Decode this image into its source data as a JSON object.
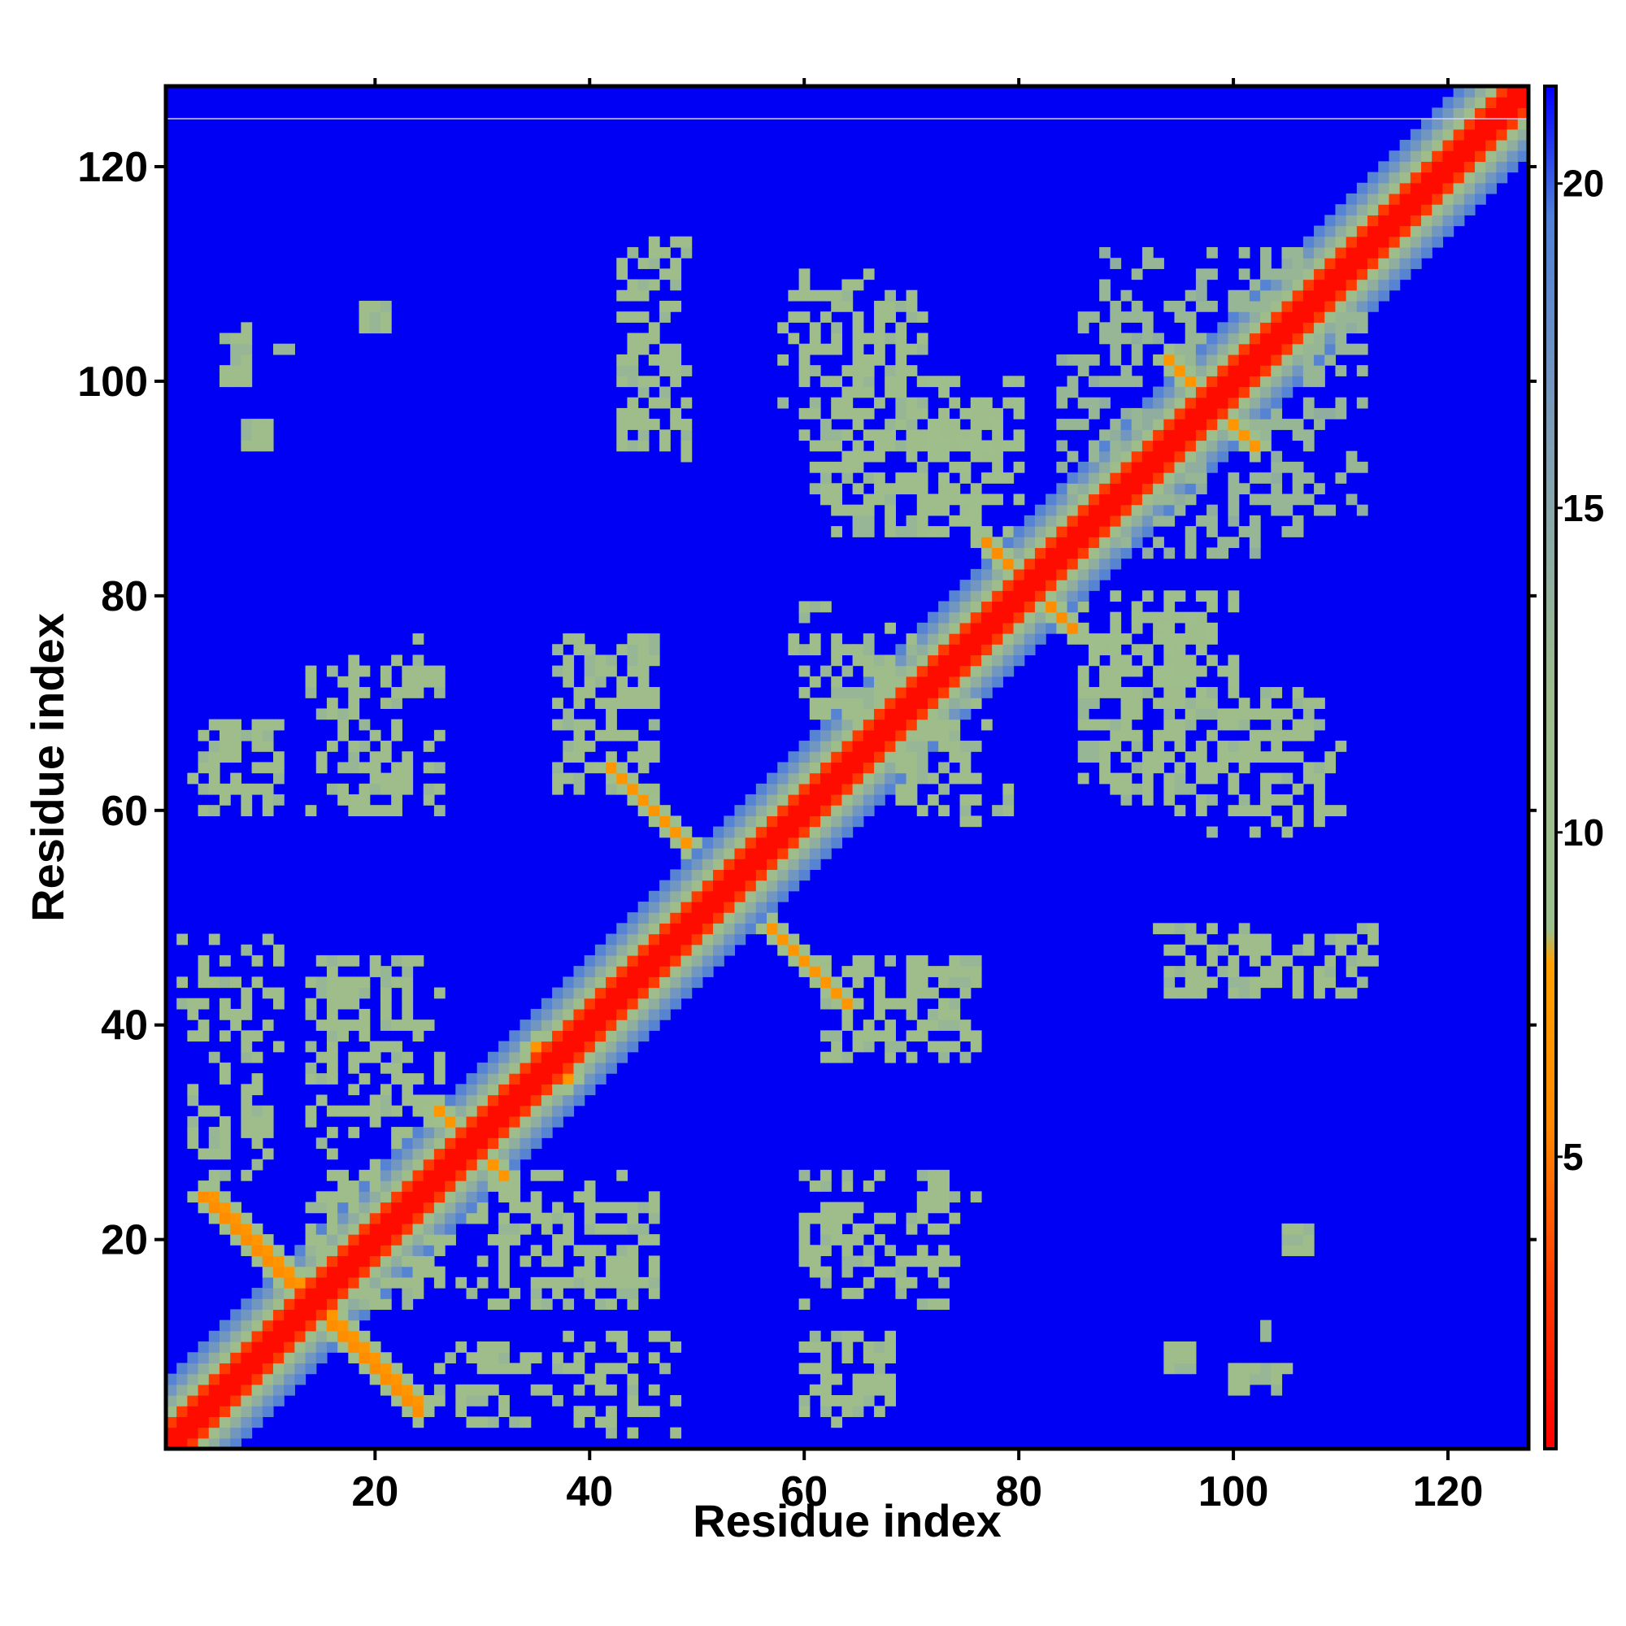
{
  "chart_data": {
    "type": "heatmap",
    "title": "",
    "xlabel": "Residue index",
    "ylabel": "Residue index",
    "xlim": [
      1,
      127
    ],
    "ylim": [
      1,
      127
    ],
    "x_ticks": [
      20,
      40,
      60,
      80,
      100,
      120
    ],
    "y_ticks": [
      20,
      40,
      60,
      80,
      100,
      120
    ],
    "grid": false,
    "legend": "colorbar-right",
    "colorbar": {
      "range": [
        0.5,
        21.5
      ],
      "ticks": [
        5,
        10,
        15,
        20
      ],
      "stops": [
        {
          "value": 0.5,
          "color": "#ff0000"
        },
        {
          "value": 3.0,
          "color": "#ff3a00"
        },
        {
          "value": 5.5,
          "color": "#ff8800"
        },
        {
          "value": 8.0,
          "color": "#ffa000"
        },
        {
          "value": 8.5,
          "color": "#9cc08c"
        },
        {
          "value": 12.0,
          "color": "#9fbd8b"
        },
        {
          "value": 16.0,
          "color": "#7f9fb5"
        },
        {
          "value": 19.5,
          "color": "#4f7fd8"
        },
        {
          "value": 21.5,
          "color": "#0000ff"
        }
      ]
    },
    "background_value": 22,
    "background_color": "#0000f5",
    "diagonal_band": [
      {
        "offset_max": 1,
        "value": 1
      },
      {
        "offset_max": 2,
        "value": 3
      },
      {
        "offset_max": 3,
        "value": 12
      },
      {
        "offset_max": 4,
        "value": 14
      },
      {
        "offset_max": 5,
        "value": 17
      },
      {
        "offset_max": 6,
        "value": 19
      }
    ],
    "contact_segments": [
      {
        "from": [
          4,
          24
        ],
        "to": [
          12,
          16
        ],
        "value": 6
      },
      {
        "from": [
          5,
          24
        ],
        "to": [
          13,
          16
        ],
        "value": 7
      },
      {
        "from": [
          16,
          12
        ],
        "to": [
          24,
          4
        ],
        "value": 6
      },
      {
        "from": [
          17,
          12
        ],
        "to": [
          24,
          5
        ],
        "value": 7
      },
      {
        "from": [
          26,
          32
        ],
        "to": [
          32,
          26
        ],
        "value": 7
      },
      {
        "from": [
          35,
          38
        ],
        "to": [
          38,
          35
        ],
        "value": 7
      },
      {
        "from": [
          42,
          64
        ],
        "to": [
          49,
          57
        ],
        "value": 7
      },
      {
        "from": [
          57,
          49
        ],
        "to": [
          64,
          42
        ],
        "value": 7
      },
      {
        "from": [
          77,
          85
        ],
        "to": [
          85,
          77
        ],
        "value": 6
      },
      {
        "from": [
          94,
          102
        ],
        "to": [
          102,
          94
        ],
        "value": 7
      },
      {
        "from": [
          96,
          98
        ],
        "to": [
          98,
          96
        ],
        "value": 6
      }
    ],
    "contact_regions": [
      {
        "x": [
          3,
          10
        ],
        "y": [
          28,
          46
        ],
        "density": 0.35,
        "value": 12
      },
      {
        "x": [
          3,
          10
        ],
        "y": [
          60,
          68
        ],
        "density": 0.35,
        "value": 12
      },
      {
        "x": [
          8,
          12
        ],
        "y": [
          101,
          104
        ],
        "density": 0.15,
        "value": 13
      },
      {
        "x": [
          14,
          24
        ],
        "y": [
          14,
          46
        ],
        "density": 0.3,
        "value": 12
      },
      {
        "x": [
          14,
          26
        ],
        "y": [
          60,
          73
        ],
        "density": 0.35,
        "value": 12
      },
      {
        "x": [
          20,
          21
        ],
        "y": [
          106,
          107
        ],
        "density": 1.0,
        "value": 13
      },
      {
        "x": [
          26,
          35
        ],
        "y": [
          3,
          9
        ],
        "density": 0.3,
        "value": 12
      },
      {
        "x": [
          30,
          46
        ],
        "y": [
          14,
          26
        ],
        "density": 0.35,
        "value": 12
      },
      {
        "x": [
          38,
          48
        ],
        "y": [
          2,
          11
        ],
        "density": 0.3,
        "value": 12
      },
      {
        "x": [
          38,
          46
        ],
        "y": [
          64,
          76
        ],
        "density": 0.4,
        "value": 12
      },
      {
        "x": [
          43,
          49
        ],
        "y": [
          93,
          113
        ],
        "density": 0.35,
        "value": 12
      },
      {
        "x": [
          60,
          68
        ],
        "y": [
          4,
          11
        ],
        "density": 0.35,
        "value": 12
      },
      {
        "x": [
          60,
          67
        ],
        "y": [
          17,
          25
        ],
        "density": 0.4,
        "value": 12
      },
      {
        "x": [
          70,
          76
        ],
        "y": [
          18,
          25
        ],
        "density": 0.3,
        "value": 12
      },
      {
        "x": [
          62,
          76
        ],
        "y": [
          37,
          46
        ],
        "density": 0.3,
        "value": 12
      },
      {
        "x": [
          61,
          70
        ],
        "y": [
          69,
          76
        ],
        "density": 0.35,
        "value": 12
      },
      {
        "x": [
          60,
          71
        ],
        "y": [
          89,
          107
        ],
        "density": 0.35,
        "value": 12
      },
      {
        "x": [
          72,
          78
        ],
        "y": [
          88,
          97
        ],
        "density": 0.45,
        "value": 12
      },
      {
        "x": [
          70,
          79
        ],
        "y": [
          59,
          68
        ],
        "density": 0.3,
        "value": 12
      },
      {
        "x": [
          86,
          98
        ],
        "y": [
          62,
          76
        ],
        "density": 0.35,
        "value": 12
      },
      {
        "x": [
          86,
          100
        ],
        "y": [
          72,
          80
        ],
        "density": 0.45,
        "value": 11
      },
      {
        "x": [
          98,
          110
        ],
        "y": [
          58,
          70
        ],
        "density": 0.35,
        "value": 12
      },
      {
        "x": [
          95,
          112
        ],
        "y": [
          43,
          48
        ],
        "density": 0.4,
        "value": 12
      },
      {
        "x": [
          84,
          96
        ],
        "y": [
          84,
          106
        ],
        "density": 0.3,
        "value": 13
      },
      {
        "x": [
          100,
          112
        ],
        "y": [
          88,
          112
        ],
        "density": 0.3,
        "value": 13
      },
      {
        "x": [
          105,
          107
        ],
        "y": [
          19,
          21
        ],
        "density": 1.0,
        "value": 12
      },
      {
        "x": [
          94,
          96
        ],
        "y": [
          8,
          10
        ],
        "density": 1.0,
        "value": 12
      },
      {
        "x": [
          100,
          105
        ],
        "y": [
          6,
          8
        ],
        "density": 0.5,
        "value": 12
      }
    ]
  }
}
